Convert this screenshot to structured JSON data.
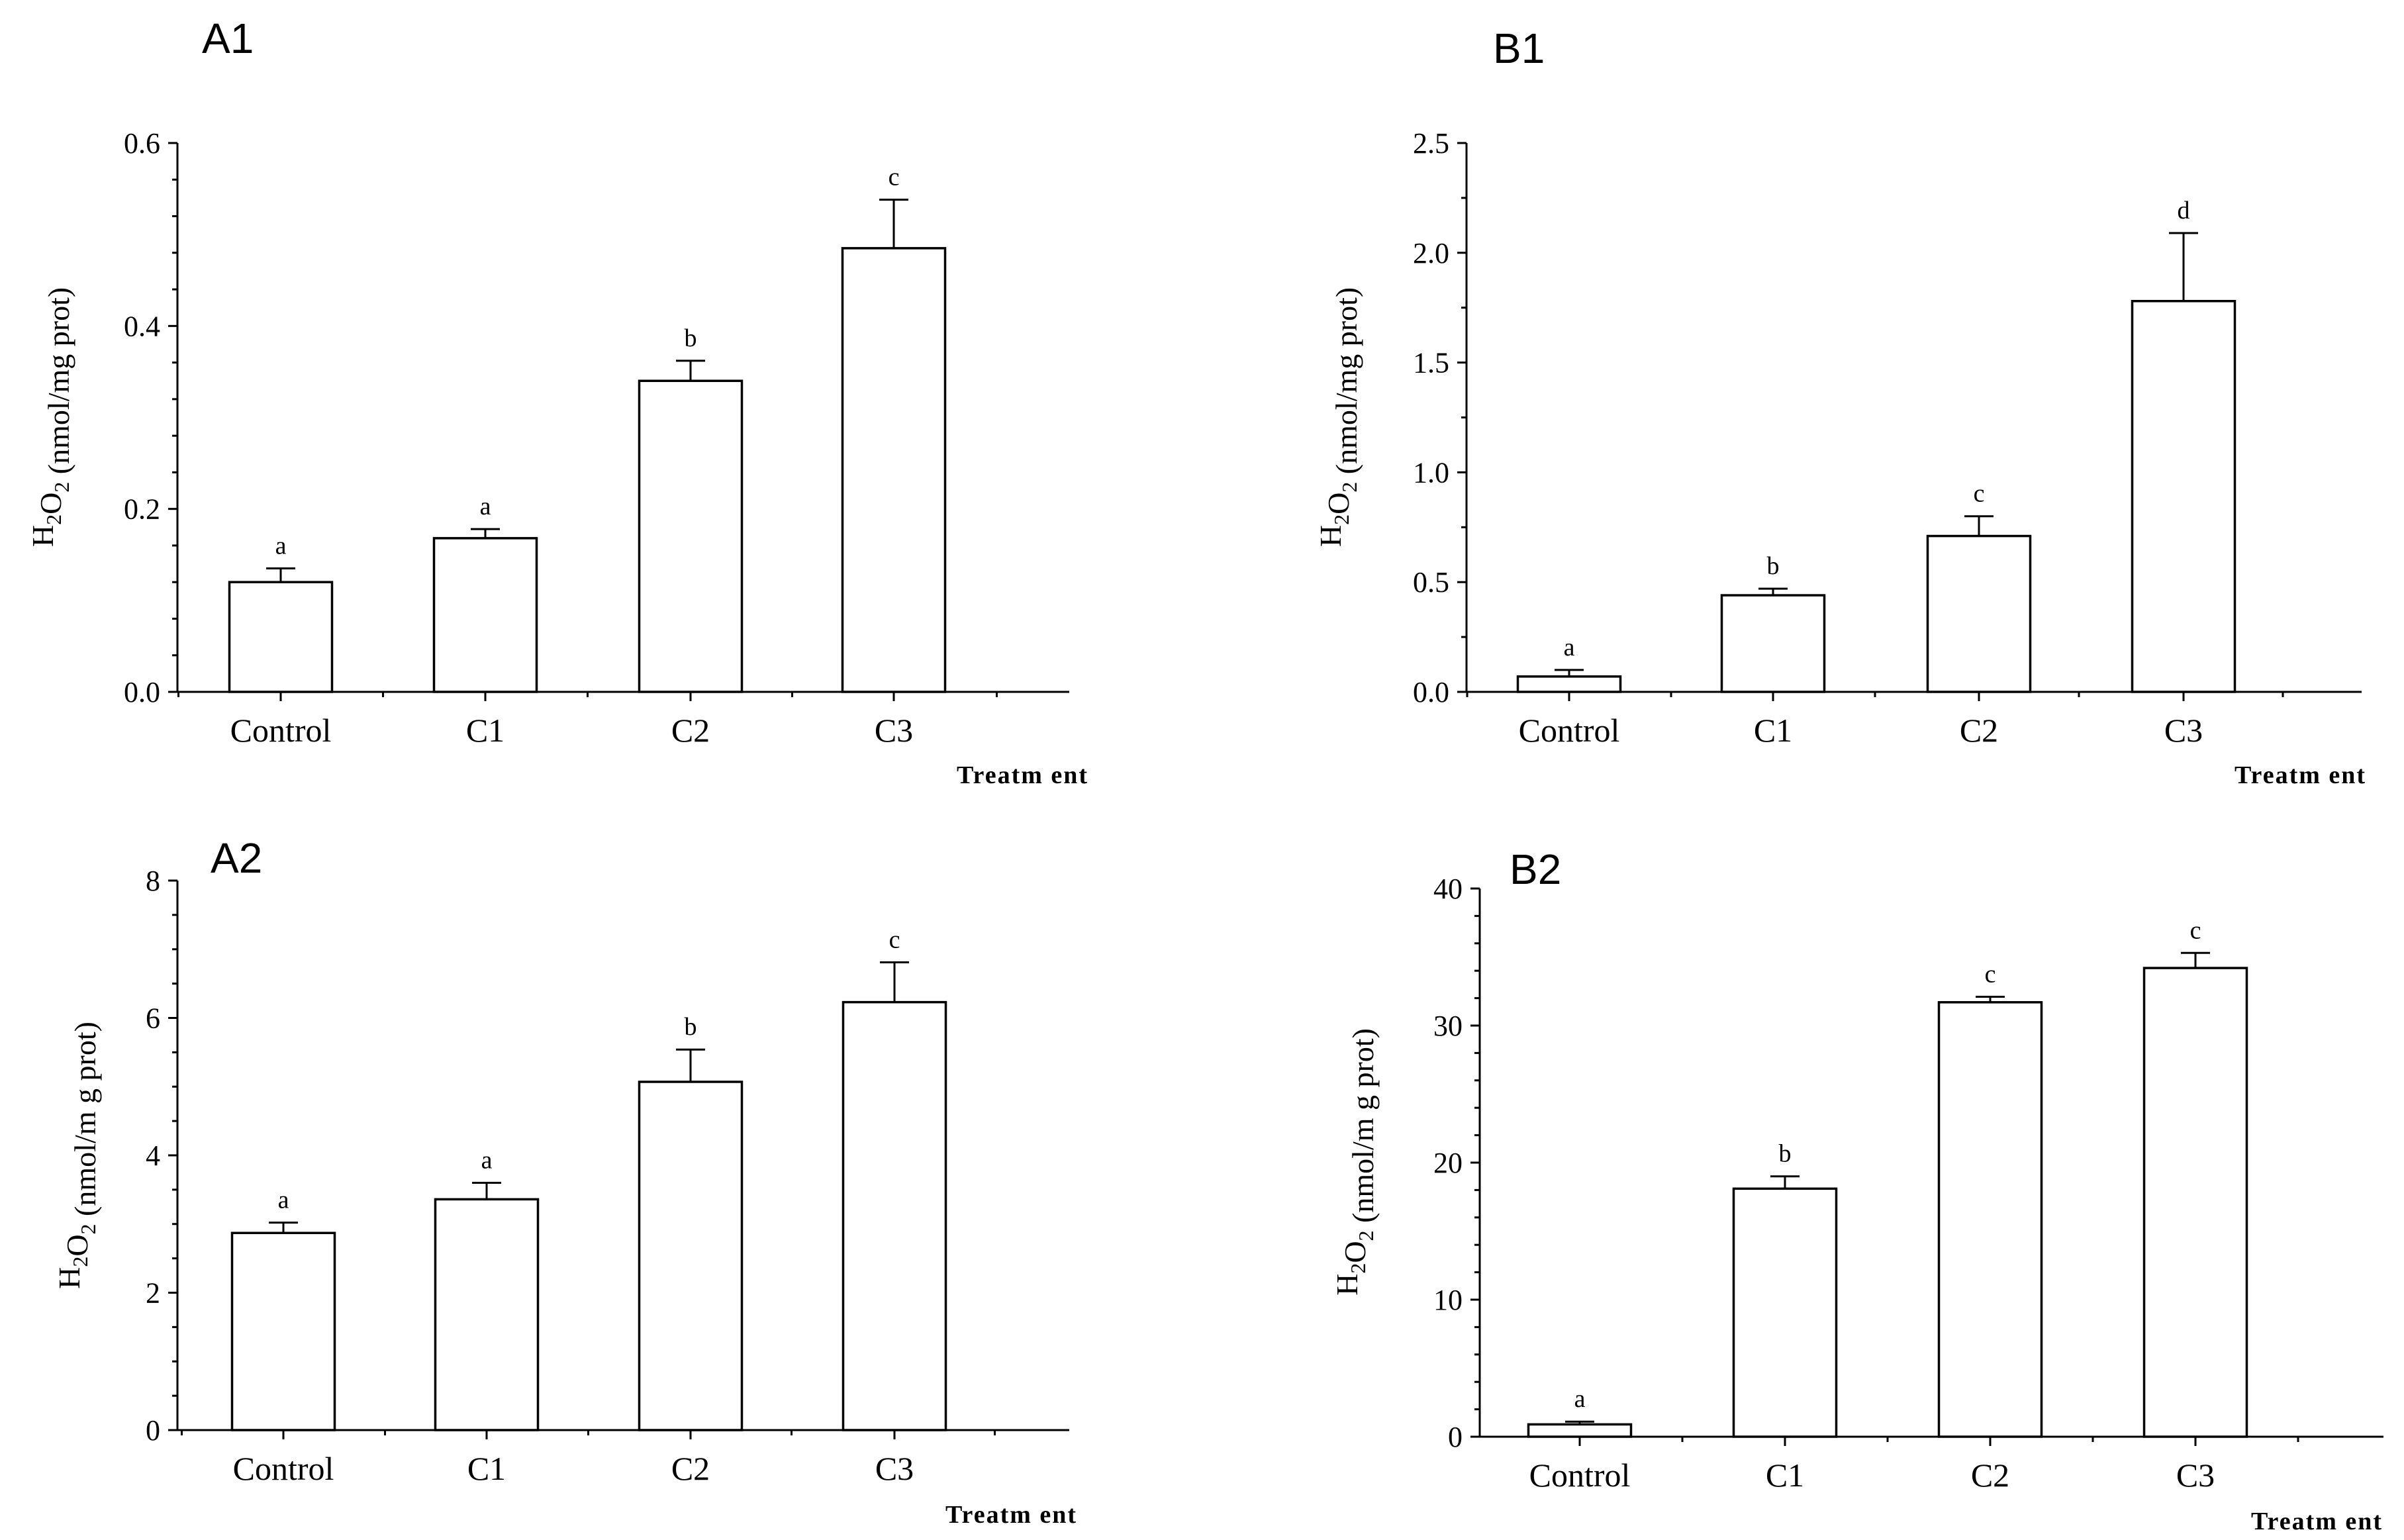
{
  "chart_data": [
    {
      "type": "bar",
      "panel": "A1",
      "categories": [
        "Control",
        "C1",
        "C2",
        "C3"
      ],
      "values": [
        0.12,
        0.168,
        0.34,
        0.485
      ],
      "errors": [
        0.015,
        0.01,
        0.022,
        0.053
      ],
      "significance": [
        "a",
        "a",
        "b",
        "c"
      ],
      "ylim": [
        0,
        0.6
      ],
      "yticks": [
        0,
        0.2,
        0.4,
        0.6
      ],
      "ytick_labels": [
        "0.0",
        "0.2",
        "0.4",
        "0.6"
      ],
      "minor_per_major": 5,
      "xlabel": "Treatm ent",
      "ylabel": {
        "h": "H",
        "sub1": "2",
        "o": "O",
        "sub2": "2",
        "rest": " (nmol/mg prot)"
      }
    },
    {
      "type": "bar",
      "panel": "B1",
      "categories": [
        "Control",
        "C1",
        "C2",
        "C3"
      ],
      "values": [
        0.07,
        0.44,
        0.71,
        1.78
      ],
      "errors": [
        0.03,
        0.03,
        0.09,
        0.31
      ],
      "significance": [
        "a",
        "b",
        "c",
        "d"
      ],
      "ylim": [
        0,
        2.5
      ],
      "yticks": [
        0,
        0.5,
        1.0,
        1.5,
        2.0,
        2.5
      ],
      "ytick_labels": [
        "0.0",
        "0.5",
        "1.0",
        "1.5",
        "2.0",
        "2.5"
      ],
      "minor_per_major": 2,
      "xlabel": "Treatm ent",
      "ylabel": {
        "h": "H",
        "sub1": "2",
        "o": "O",
        "sub2": "2",
        "rest": " (nmol/mg prot)"
      }
    },
    {
      "type": "bar",
      "panel": "A2",
      "categories": [
        "Control",
        "C1",
        "C2",
        "C3"
      ],
      "values": [
        2.87,
        3.36,
        5.07,
        6.23
      ],
      "errors": [
        0.15,
        0.24,
        0.47,
        0.58
      ],
      "significance": [
        "a",
        "a",
        "b",
        "c"
      ],
      "ylim": [
        0,
        8
      ],
      "yticks": [
        0,
        2,
        4,
        6,
        8
      ],
      "ytick_labels": [
        "0",
        "2",
        "4",
        "6",
        "8"
      ],
      "minor_per_major": 4,
      "xlabel": "Treatm ent",
      "ylabel": {
        "h": "H",
        "sub1": "2",
        "o": "O",
        "sub2": "2",
        "rest": " (nmol/m g prot)"
      }
    },
    {
      "type": "bar",
      "panel": "B2",
      "categories": [
        "Control",
        "C1",
        "C2",
        "C3"
      ],
      "values": [
        0.9,
        18.1,
        31.7,
        34.2
      ],
      "errors": [
        0.2,
        0.9,
        0.4,
        1.1
      ],
      "significance": [
        "a",
        "b",
        "c",
        "c"
      ],
      "ylim": [
        0,
        40
      ],
      "yticks": [
        0,
        10,
        20,
        30,
        40
      ],
      "ytick_labels": [
        "0",
        "10",
        "20",
        "30",
        "40"
      ],
      "minor_per_major": 5,
      "xlabel": "Treatm ent",
      "ylabel": {
        "h": "H",
        "sub1": "2",
        "o": "O",
        "sub2": "2",
        "rest": " (nmol/m g prot)"
      }
    }
  ]
}
